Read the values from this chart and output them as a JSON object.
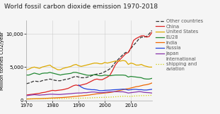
{
  "title": "World fossil carbon dioxide emission 1970-2018",
  "ylabel": "Million tonnes CO2/year",
  "years": [
    1970,
    1971,
    1972,
    1973,
    1974,
    1975,
    1976,
    1977,
    1978,
    1979,
    1980,
    1981,
    1982,
    1983,
    1984,
    1985,
    1986,
    1987,
    1988,
    1989,
    1990,
    1991,
    1992,
    1993,
    1994,
    1995,
    1996,
    1997,
    1998,
    1999,
    2000,
    2001,
    2002,
    2003,
    2004,
    2005,
    2006,
    2007,
    2008,
    2009,
    2010,
    2011,
    2012,
    2013,
    2014,
    2015,
    2016,
    2017,
    2018
  ],
  "series": {
    "Other countries": [
      2500,
      2600,
      2750,
      2900,
      2850,
      2800,
      2950,
      3050,
      3100,
      3200,
      3100,
      3000,
      2950,
      2950,
      3050,
      3150,
      3200,
      3350,
      3500,
      3600,
      3500,
      3400,
      3400,
      3450,
      3550,
      3700,
      3850,
      3950,
      4000,
      4100,
      4300,
      4500,
      4750,
      5200,
      5700,
      6100,
      6500,
      6900,
      7200,
      7200,
      7800,
      8300,
      8700,
      9200,
      9500,
      9500,
      9600,
      10000,
      10500
    ],
    "China": [
      800,
      850,
      900,
      950,
      1000,
      1050,
      1150,
      1200,
      1300,
      1400,
      1500,
      1450,
      1500,
      1550,
      1600,
      1700,
      1800,
      2000,
      2200,
      2300,
      2200,
      2300,
      2400,
      2500,
      2700,
      2900,
      3100,
      3200,
      3100,
      3100,
      3300,
      3500,
      3800,
      4500,
      5300,
      5800,
      6200,
      6600,
      7000,
      7200,
      7900,
      9000,
      9300,
      9500,
      9700,
      9700,
      9500,
      9600,
      10200
    ],
    "United States": [
      4600,
      4700,
      4900,
      5000,
      4900,
      4800,
      5000,
      5100,
      5200,
      5300,
      5000,
      4800,
      4600,
      4600,
      4800,
      4900,
      5000,
      5100,
      5300,
      5400,
      5200,
      5100,
      5200,
      5300,
      5400,
      5500,
      5600,
      5600,
      5500,
      5500,
      5700,
      5600,
      5700,
      5800,
      5900,
      5900,
      5900,
      6000,
      5900,
      5400,
      5600,
      5500,
      5300,
      5300,
      5400,
      5200,
      5100,
      5000,
      5000
    ],
    "EU28": [
      3800,
      3800,
      3950,
      4100,
      4000,
      3900,
      4050,
      4100,
      4100,
      4200,
      4100,
      4000,
      3900,
      3800,
      3900,
      3950,
      4000,
      4050,
      4200,
      4200,
      4100,
      4000,
      3900,
      3800,
      3750,
      3800,
      3850,
      3800,
      3700,
      3700,
      3800,
      3750,
      3700,
      3750,
      3800,
      3800,
      3800,
      3800,
      3750,
      3500,
      3600,
      3550,
      3500,
      3450,
      3400,
      3250,
      3200,
      3200,
      3300
    ],
    "India": [
      200,
      210,
      220,
      230,
      240,
      250,
      270,
      290,
      310,
      330,
      350,
      370,
      390,
      410,
      430,
      460,
      490,
      520,
      560,
      600,
      640,
      680,
      720,
      760,
      800,
      860,
      920,
      980,
      1020,
      1060,
      1100,
      1140,
      1180,
      1240,
      1330,
      1420,
      1510,
      1600,
      1700,
      1750,
      1850,
      1950,
      2050,
      2100,
      2200,
      2300,
      2350,
      2450,
      2600
    ],
    "Russia": [
      null,
      null,
      null,
      null,
      null,
      null,
      null,
      null,
      null,
      null,
      null,
      null,
      null,
      null,
      null,
      null,
      null,
      null,
      null,
      null,
      2300,
      2000,
      1800,
      1700,
      1650,
      1600,
      1600,
      1550,
      1450,
      1450,
      1500,
      1520,
      1540,
      1580,
      1600,
      1620,
      1650,
      1680,
      1650,
      1550,
      1600,
      1650,
      1650,
      1600,
      1600,
      1550,
      1550,
      1600,
      1650
    ],
    "Japan": [
      700,
      750,
      800,
      850,
      820,
      780,
      820,
      840,
      880,
      920,
      920,
      900,
      880,
      880,
      920,
      950,
      970,
      1000,
      1050,
      1080,
      1100,
      1100,
      1150,
      1150,
      1200,
      1250,
      1250,
      1200,
      1150,
      1150,
      1200,
      1250,
      1280,
      1300,
      1300,
      1300,
      1280,
      1280,
      1200,
      1100,
      1150,
      1200,
      1250,
      1300,
      1280,
      1200,
      1170,
      1150,
      1100
    ],
    "International shipping and aviation": [
      200,
      210,
      220,
      230,
      240,
      220,
      240,
      250,
      260,
      280,
      270,
      260,
      250,
      250,
      260,
      270,
      280,
      290,
      300,
      310,
      320,
      330,
      340,
      350,
      360,
      380,
      400,
      420,
      430,
      440,
      460,
      470,
      480,
      500,
      530,
      560,
      580,
      610,
      630,
      580,
      600,
      640,
      660,
      680,
      700,
      710,
      720,
      740,
      760
    ]
  },
  "colors": {
    "Other countries": "#333333",
    "China": "#dd2222",
    "United States": "#ddaa00",
    "EU28": "#228833",
    "India": "#ee6600",
    "Russia": "#2244dd",
    "Japan": "#8833aa",
    "International shipping and aviation": "#cccc00"
  },
  "linestyles": {
    "Other countries": "--",
    "China": "-",
    "United States": "-",
    "EU28": "-",
    "India": "-",
    "Russia": "-",
    "Japan": "-",
    "International shipping and aviation": ":"
  },
  "ylim": [
    0,
    12000
  ],
  "yticks": [
    0,
    5000,
    10000
  ],
  "xticks": [
    1970,
    1980,
    1990,
    2000,
    2010
  ],
  "background_color": "#f5f5f5",
  "grid_color": "#cccccc",
  "title_fontsize": 6.5,
  "axis_fontsize": 5,
  "legend_fontsize": 4.8,
  "linewidth": 0.9
}
